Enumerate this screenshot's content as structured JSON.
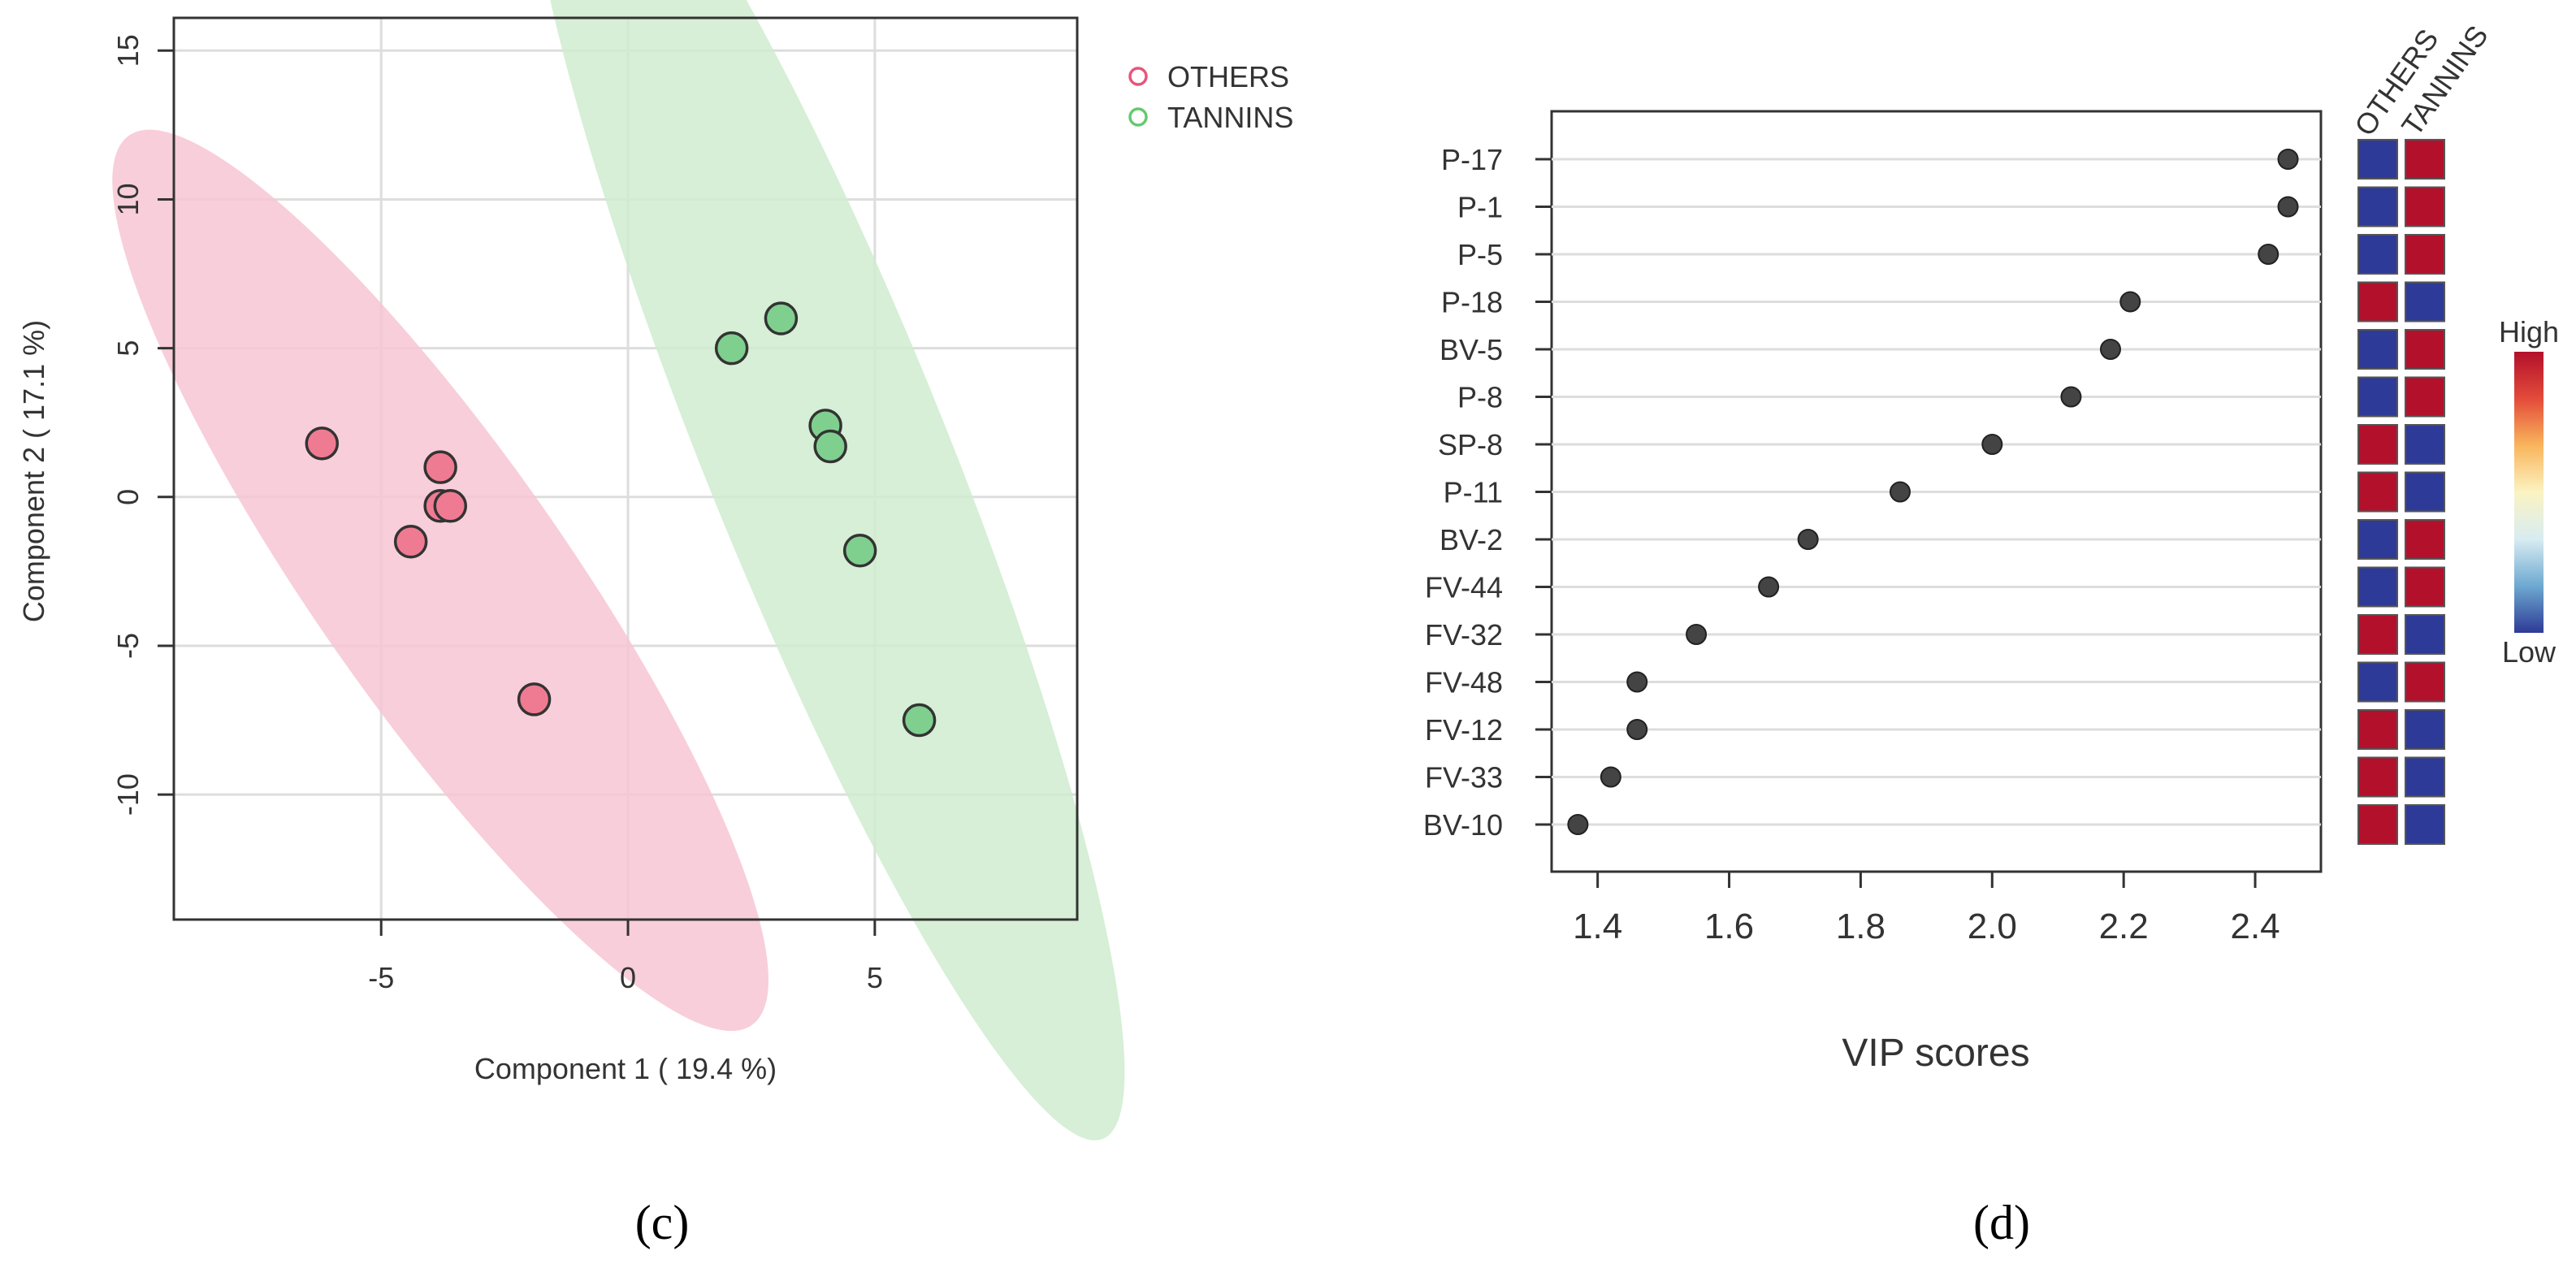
{
  "panel_labels": {
    "c": "(c)",
    "d": "(d)"
  },
  "chart_data": [
    {
      "type": "scatter",
      "panel": "c",
      "xlabel": "Component 1 ( 19.4 %)",
      "ylabel": "Component 2 ( 17.1 %)",
      "xlim": [
        -9.2,
        9.1
      ],
      "ylim": [
        -14.2,
        16.1
      ],
      "x_ticks": [
        -5,
        0,
        5
      ],
      "x_tick_labels": [
        "-5",
        "0",
        "5"
      ],
      "y_ticks": [
        15,
        10,
        5,
        0,
        -5,
        -10
      ],
      "y_tick_labels": [
        "15",
        "10",
        "5",
        "0",
        "-5",
        "-10"
      ],
      "grid": true,
      "legend_position": "top-right outside",
      "legend": [
        {
          "label": "OTHERS",
          "color": "#e8557a"
        },
        {
          "label": "TANNINS",
          "color": "#66c96f"
        }
      ],
      "series": [
        {
          "name": "OTHERS",
          "fill": "#ef7b92",
          "ellipse_fill": "#f7c6d3",
          "ellipse": {
            "cx": -3.8,
            "cy": -2.8,
            "semi_major": 11.0,
            "semi_minor": 2.55,
            "angle_deg": -55
          },
          "points": [
            [
              -6.2,
              1.8
            ],
            [
              -3.8,
              1.0
            ],
            [
              -3.8,
              -0.3
            ],
            [
              -3.6,
              -0.3
            ],
            [
              -4.4,
              -1.5
            ],
            [
              -1.9,
              -6.8
            ]
          ]
        },
        {
          "name": "TANNINS",
          "fill": "#7fd08e",
          "ellipse_fill": "#cfeccf",
          "ellipse": {
            "cx": 4.0,
            "cy": 1.5,
            "semi_major": 15.0,
            "semi_minor": 2.45,
            "angle_deg": -68
          },
          "points": [
            [
              2.1,
              5.0
            ],
            [
              3.1,
              6.0
            ],
            [
              4.0,
              2.4
            ],
            [
              4.1,
              1.7
            ],
            [
              4.7,
              -1.8
            ],
            [
              5.9,
              -7.5
            ]
          ]
        }
      ]
    },
    {
      "type": "dot",
      "panel": "d",
      "title": "",
      "xlabel": "VIP scores",
      "xlim": [
        1.33,
        2.5
      ],
      "x_ticks": [
        1.4,
        1.6,
        1.8,
        2.0,
        2.2,
        2.4
      ],
      "x_tick_labels": [
        "1.4",
        "1.6",
        "1.8",
        "2.0",
        "2.2",
        "2.4"
      ],
      "categories": [
        "P-17",
        "P-1",
        "P-5",
        "P-18",
        "BV-5",
        "P-8",
        "SP-8",
        "P-11",
        "BV-2",
        "FV-44",
        "FV-32",
        "FV-48",
        "FV-12",
        "FV-33",
        "BV-10"
      ],
      "values": [
        2.45,
        2.45,
        2.42,
        2.21,
        2.18,
        2.12,
        2.0,
        1.86,
        1.72,
        1.66,
        1.55,
        1.46,
        1.46,
        1.42,
        1.37
      ],
      "heatmap": {
        "columns": [
          "OTHERS",
          "TANNINS"
        ],
        "levels": [
          [
            "Low",
            "High"
          ],
          [
            "Low",
            "High"
          ],
          [
            "Low",
            "High"
          ],
          [
            "High",
            "Low"
          ],
          [
            "Low",
            "High"
          ],
          [
            "Low",
            "High"
          ],
          [
            "High",
            "Low"
          ],
          [
            "High",
            "Low"
          ],
          [
            "Low",
            "High"
          ],
          [
            "Low",
            "High"
          ],
          [
            "High",
            "Low"
          ],
          [
            "Low",
            "High"
          ],
          [
            "High",
            "Low"
          ],
          [
            "High",
            "Low"
          ],
          [
            "High",
            "Low"
          ]
        ],
        "high_color": "#b3102c",
        "low_color": "#2e3a97"
      },
      "colorbar": {
        "high_label": "High",
        "low_label": "Low",
        "stops": [
          "#b3102c",
          "#e34b3a",
          "#f9b55c",
          "#fbf3c2",
          "#d8ecf2",
          "#6da9d0",
          "#2e3a97"
        ]
      }
    }
  ]
}
